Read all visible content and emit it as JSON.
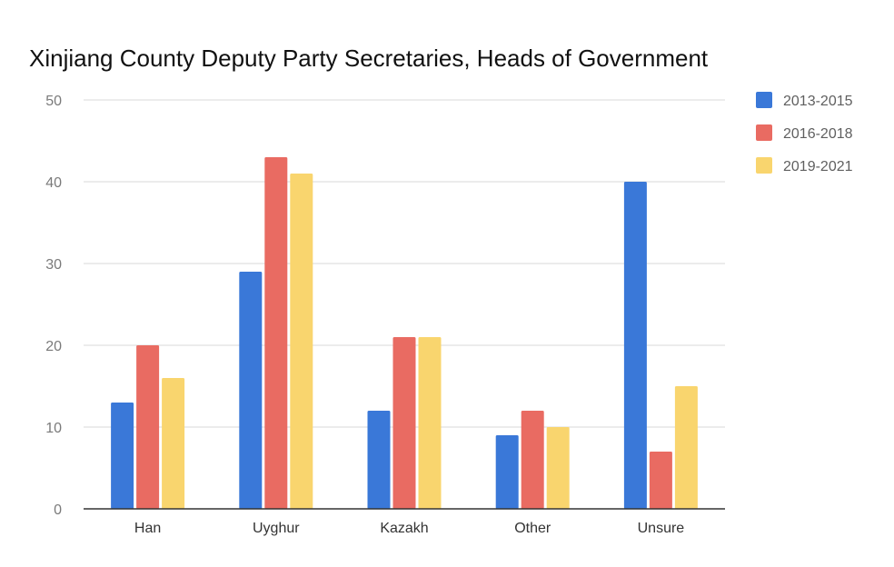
{
  "chart_data": {
    "type": "bar",
    "title": "Xinjiang County Deputy Party Secretaries, Heads of Government",
    "xlabel": "",
    "ylabel": "",
    "ylim": [
      0,
      50
    ],
    "yticks": [
      0,
      10,
      20,
      30,
      40,
      50
    ],
    "grid": true,
    "legend_position": "right",
    "categories": [
      "Han",
      "Uyghur",
      "Kazakh",
      "Other",
      "Unsure"
    ],
    "series": [
      {
        "name": "2013-2015",
        "color": "#3a78d8",
        "values": [
          13,
          29,
          12,
          9,
          40
        ]
      },
      {
        "name": "2016-2018",
        "color": "#e96b62",
        "values": [
          20,
          43,
          21,
          12,
          7
        ]
      },
      {
        "name": "2019-2021",
        "color": "#f9d56e",
        "values": [
          16,
          41,
          21,
          10,
          15
        ]
      }
    ]
  }
}
